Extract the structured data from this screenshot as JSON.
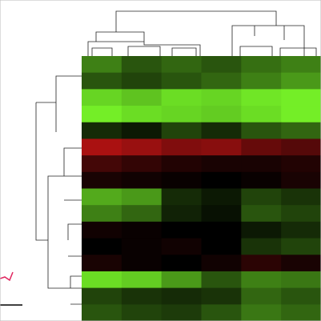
{
  "chart_data": {
    "type": "heatmap",
    "zlim": [
      -3,
      3
    ],
    "low_color": "#7cff2a",
    "mid_color": "#000000",
    "high_color": "#ff1a1a",
    "values": [
      [
        -1.5,
        -1.0,
        -1.2,
        -1.0,
        -1.3,
        -1.5
      ],
      [
        -1.0,
        -0.8,
        -1.0,
        -1.2,
        -1.5,
        -1.8
      ],
      [
        -2.5,
        -2.3,
        -2.6,
        -2.5,
        -2.7,
        -2.8
      ],
      [
        -2.8,
        -2.6,
        -2.5,
        -2.4,
        -2.6,
        -2.8
      ],
      [
        -0.5,
        -0.3,
        -0.8,
        -0.5,
        -1.0,
        -1.2
      ],
      [
        2.0,
        1.8,
        1.5,
        1.6,
        1.2,
        1.0
      ],
      [
        0.8,
        0.6,
        0.4,
        0.3,
        0.3,
        0.4
      ],
      [
        0.3,
        0.2,
        0.1,
        0.0,
        0.1,
        0.3
      ],
      [
        -2.0,
        -1.8,
        -0.5,
        -0.3,
        -0.8,
        -0.6
      ],
      [
        -1.5,
        -1.2,
        -0.4,
        -0.2,
        -1.0,
        -0.8
      ],
      [
        0.2,
        0.1,
        0.0,
        0.0,
        -0.3,
        -0.5
      ],
      [
        0.0,
        0.1,
        0.2,
        0.0,
        -0.6,
        -0.8
      ],
      [
        0.3,
        0.1,
        0.0,
        0.2,
        0.5,
        0.3
      ],
      [
        -2.6,
        -2.4,
        -1.8,
        -1.0,
        -1.5,
        -1.4
      ],
      [
        -0.8,
        -0.6,
        -0.5,
        -0.6,
        -1.2,
        -1.0
      ],
      [
        -1.0,
        -0.8,
        -0.7,
        -1.0,
        -1.4,
        -1.2
      ]
    ]
  }
}
